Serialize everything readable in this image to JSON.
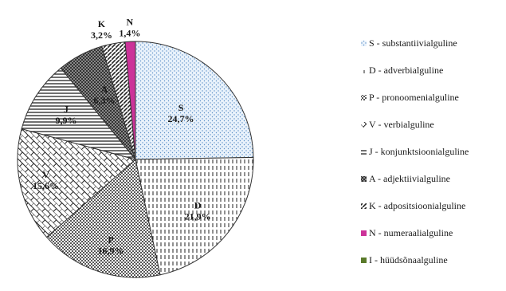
{
  "chart_data": {
    "type": "pie",
    "slices": [
      {
        "code": "S",
        "pct_label": "24,7%",
        "value": 24.7,
        "legend": "S - substantiivialguline",
        "pattern": "dots",
        "color": "#5b8fc7"
      },
      {
        "code": "D",
        "pct_label": "21,9%",
        "value": 21.9,
        "legend": "D - adverbialguline",
        "pattern": "vdash",
        "color": "#222222"
      },
      {
        "code": "P",
        "pct_label": "16,9%",
        "value": 16.9,
        "legend": "P - pronoomenialguline",
        "pattern": "densedots",
        "color": "#222222"
      },
      {
        "code": "V",
        "pct_label": "15,6%",
        "value": 15.6,
        "legend": "V - verbialguline",
        "pattern": "brick",
        "color": "#222222"
      },
      {
        "code": "J",
        "pct_label": "9,9%",
        "value": 9.9,
        "legend": "J - konjunktsioonialguline",
        "pattern": "hlines",
        "color": "#222222"
      },
      {
        "code": "A",
        "pct_label": "6,3%",
        "value": 6.3,
        "legend": "A - adjektiivialguline",
        "pattern": "checker",
        "color": "#444444"
      },
      {
        "code": "K",
        "pct_label": "3,2%",
        "value": 3.2,
        "legend": "K - adpositsioonialguline",
        "pattern": "diag",
        "color": "#222222"
      },
      {
        "code": "N",
        "pct_label": "1,4%",
        "value": 1.4,
        "legend": "N - numeraalialguline",
        "pattern": "solid",
        "color": "#cc3399"
      },
      {
        "code": "I",
        "pct_label": "",
        "value": 0,
        "legend": "I - hüüdsõnaalguline",
        "pattern": "solid",
        "color": "#5a7a2a"
      }
    ],
    "legend_position": "right"
  }
}
